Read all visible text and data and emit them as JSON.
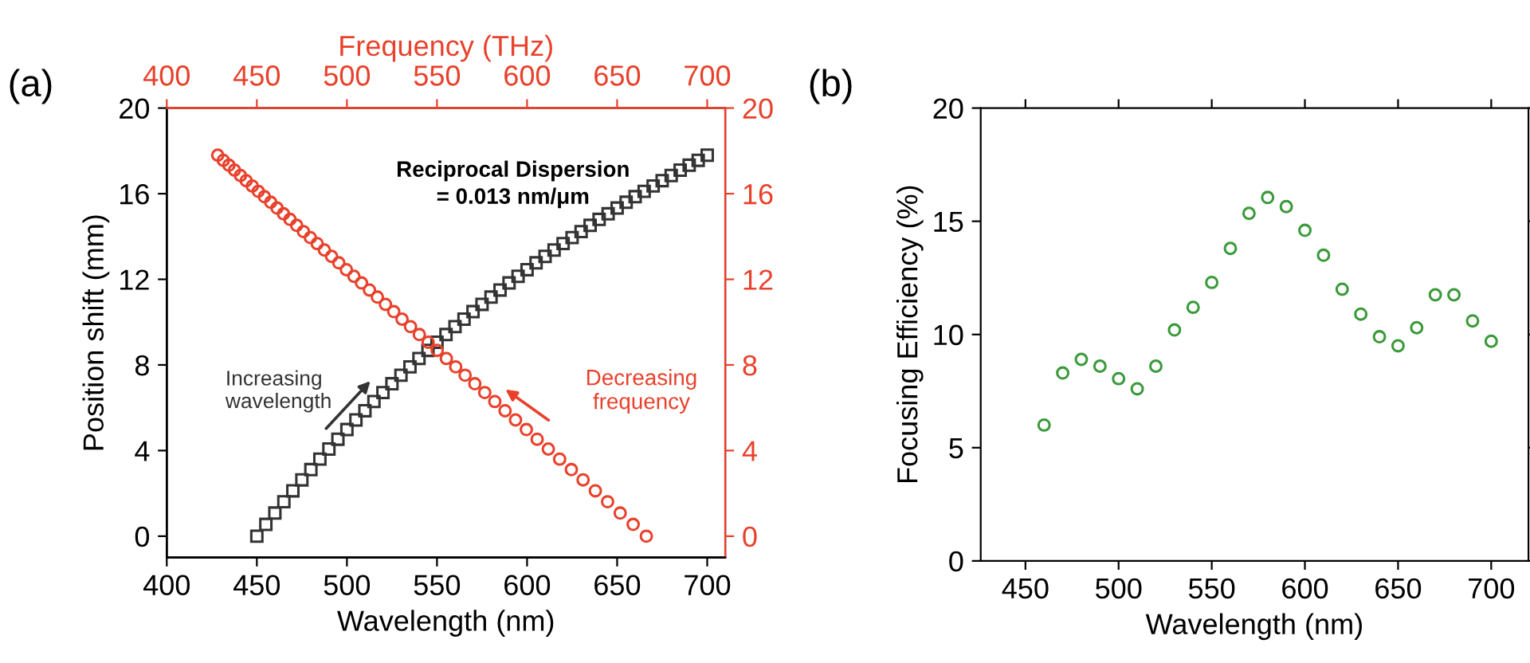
{
  "chart_data": [
    {
      "type": "scatter",
      "xlabel": "Wavelength (nm)",
      "ylabel": "Position shift (mm)",
      "x2label": "Frequency (THz)",
      "xlim": [
        400,
        710
      ],
      "xticks": [
        400,
        450,
        500,
        550,
        600,
        650,
        700
      ],
      "ylim": [
        -1,
        20
      ],
      "yticks": [
        0,
        4,
        8,
        12,
        16,
        20
      ],
      "x2lim": [
        400,
        710
      ],
      "x2ticks": [
        400,
        450,
        500,
        550,
        600,
        650,
        700
      ],
      "y2lim": [
        -1,
        20
      ],
      "y2ticks": [
        0,
        4,
        8,
        12,
        16,
        20
      ],
      "grid": false,
      "legend": false,
      "annotations": [
        "(a)",
        "Reciprocal Dispersion\n= 0.013 nm/μm",
        "Increasing\nwavelength",
        "Decreasing\nfrequency"
      ],
      "series": [
        {
          "color": "#333333",
          "marker": "square",
          "x": [
            450,
            455,
            460,
            465,
            470,
            475,
            480,
            485,
            490,
            495,
            500,
            505,
            510,
            515,
            520,
            525,
            530,
            535,
            540,
            545,
            550,
            555,
            560,
            565,
            570,
            575,
            580,
            585,
            590,
            595,
            600,
            605,
            610,
            615,
            620,
            625,
            630,
            635,
            640,
            645,
            650,
            655,
            660,
            665,
            670,
            675,
            680,
            685,
            690,
            695,
            700
          ],
          "values": [
            0.0,
            0.55,
            1.08,
            1.61,
            2.12,
            2.63,
            3.11,
            3.6,
            4.07,
            4.53,
            4.98,
            5.43,
            5.86,
            6.29,
            6.71,
            7.12,
            7.52,
            7.91,
            8.3,
            8.68,
            9.06,
            9.42,
            9.79,
            10.14,
            10.49,
            10.83,
            11.17,
            11.5,
            11.83,
            12.14,
            12.45,
            12.77,
            13.07,
            13.37,
            13.67,
            13.95,
            14.23,
            14.52,
            14.8,
            15.06,
            15.33,
            15.6,
            15.86,
            16.11,
            16.36,
            16.61,
            16.85,
            17.1,
            17.33,
            17.56,
            17.8
          ]
        },
        {
          "color": "#e8412c",
          "marker": "circle",
          "axis": "y2",
          "x": [
            666.2,
            658.9,
            651.7,
            644.7,
            637.9,
            631.1,
            624.6,
            618.1,
            611.8,
            605.6,
            599.6,
            593.6,
            587.8,
            582.1,
            576.5,
            571.0,
            565.6,
            560.4,
            555.2,
            550.1,
            545.1,
            540.2,
            535.3,
            530.6,
            526.0,
            521.4,
            516.9,
            512.5,
            508.1,
            503.9,
            499.7,
            495.5,
            491.5,
            487.5,
            483.5,
            479.7,
            475.9,
            472.1,
            468.4,
            464.8,
            461.2,
            457.7,
            454.2,
            450.8,
            447.5,
            444.1,
            440.9,
            437.6,
            434.5,
            431.4,
            428.3
          ],
          "values": [
            0.0,
            0.55,
            1.08,
            1.61,
            2.12,
            2.63,
            3.11,
            3.6,
            4.07,
            4.53,
            4.98,
            5.43,
            5.86,
            6.29,
            6.71,
            7.12,
            7.52,
            7.91,
            8.3,
            8.68,
            9.06,
            9.42,
            9.79,
            10.14,
            10.49,
            10.83,
            11.17,
            11.5,
            11.83,
            12.14,
            12.45,
            12.77,
            13.07,
            13.37,
            13.67,
            13.95,
            14.23,
            14.52,
            14.8,
            15.06,
            15.33,
            15.6,
            15.86,
            16.11,
            16.36,
            16.61,
            16.85,
            17.1,
            17.33,
            17.56,
            17.8
          ]
        }
      ]
    },
    {
      "type": "scatter",
      "xlabel": "Wavelength (nm)",
      "ylabel": "Focusing Efficiency (%)",
      "xlim": [
        426,
        720
      ],
      "xticks": [
        450,
        500,
        550,
        600,
        650,
        700
      ],
      "ylim": [
        0,
        20
      ],
      "yticks": [
        0,
        5,
        10,
        15,
        20
      ],
      "grid": false,
      "legend": false,
      "annotations": [
        "(b)"
      ],
      "series": [
        {
          "color": "#3a9a3a",
          "marker": "circle",
          "x": [
            460,
            470,
            480,
            490,
            500,
            510,
            520,
            530,
            540,
            550,
            560,
            570,
            580,
            590,
            600,
            610,
            620,
            630,
            640,
            650,
            660,
            670,
            680,
            690,
            700
          ],
          "values": [
            6.0,
            8.3,
            8.9,
            8.6,
            8.05,
            7.6,
            8.6,
            10.2,
            11.2,
            12.3,
            13.8,
            15.35,
            16.05,
            15.65,
            14.6,
            13.5,
            12.0,
            10.9,
            9.9,
            9.5,
            10.3,
            11.75,
            11.75,
            10.6,
            9.7
          ]
        }
      ]
    }
  ]
}
